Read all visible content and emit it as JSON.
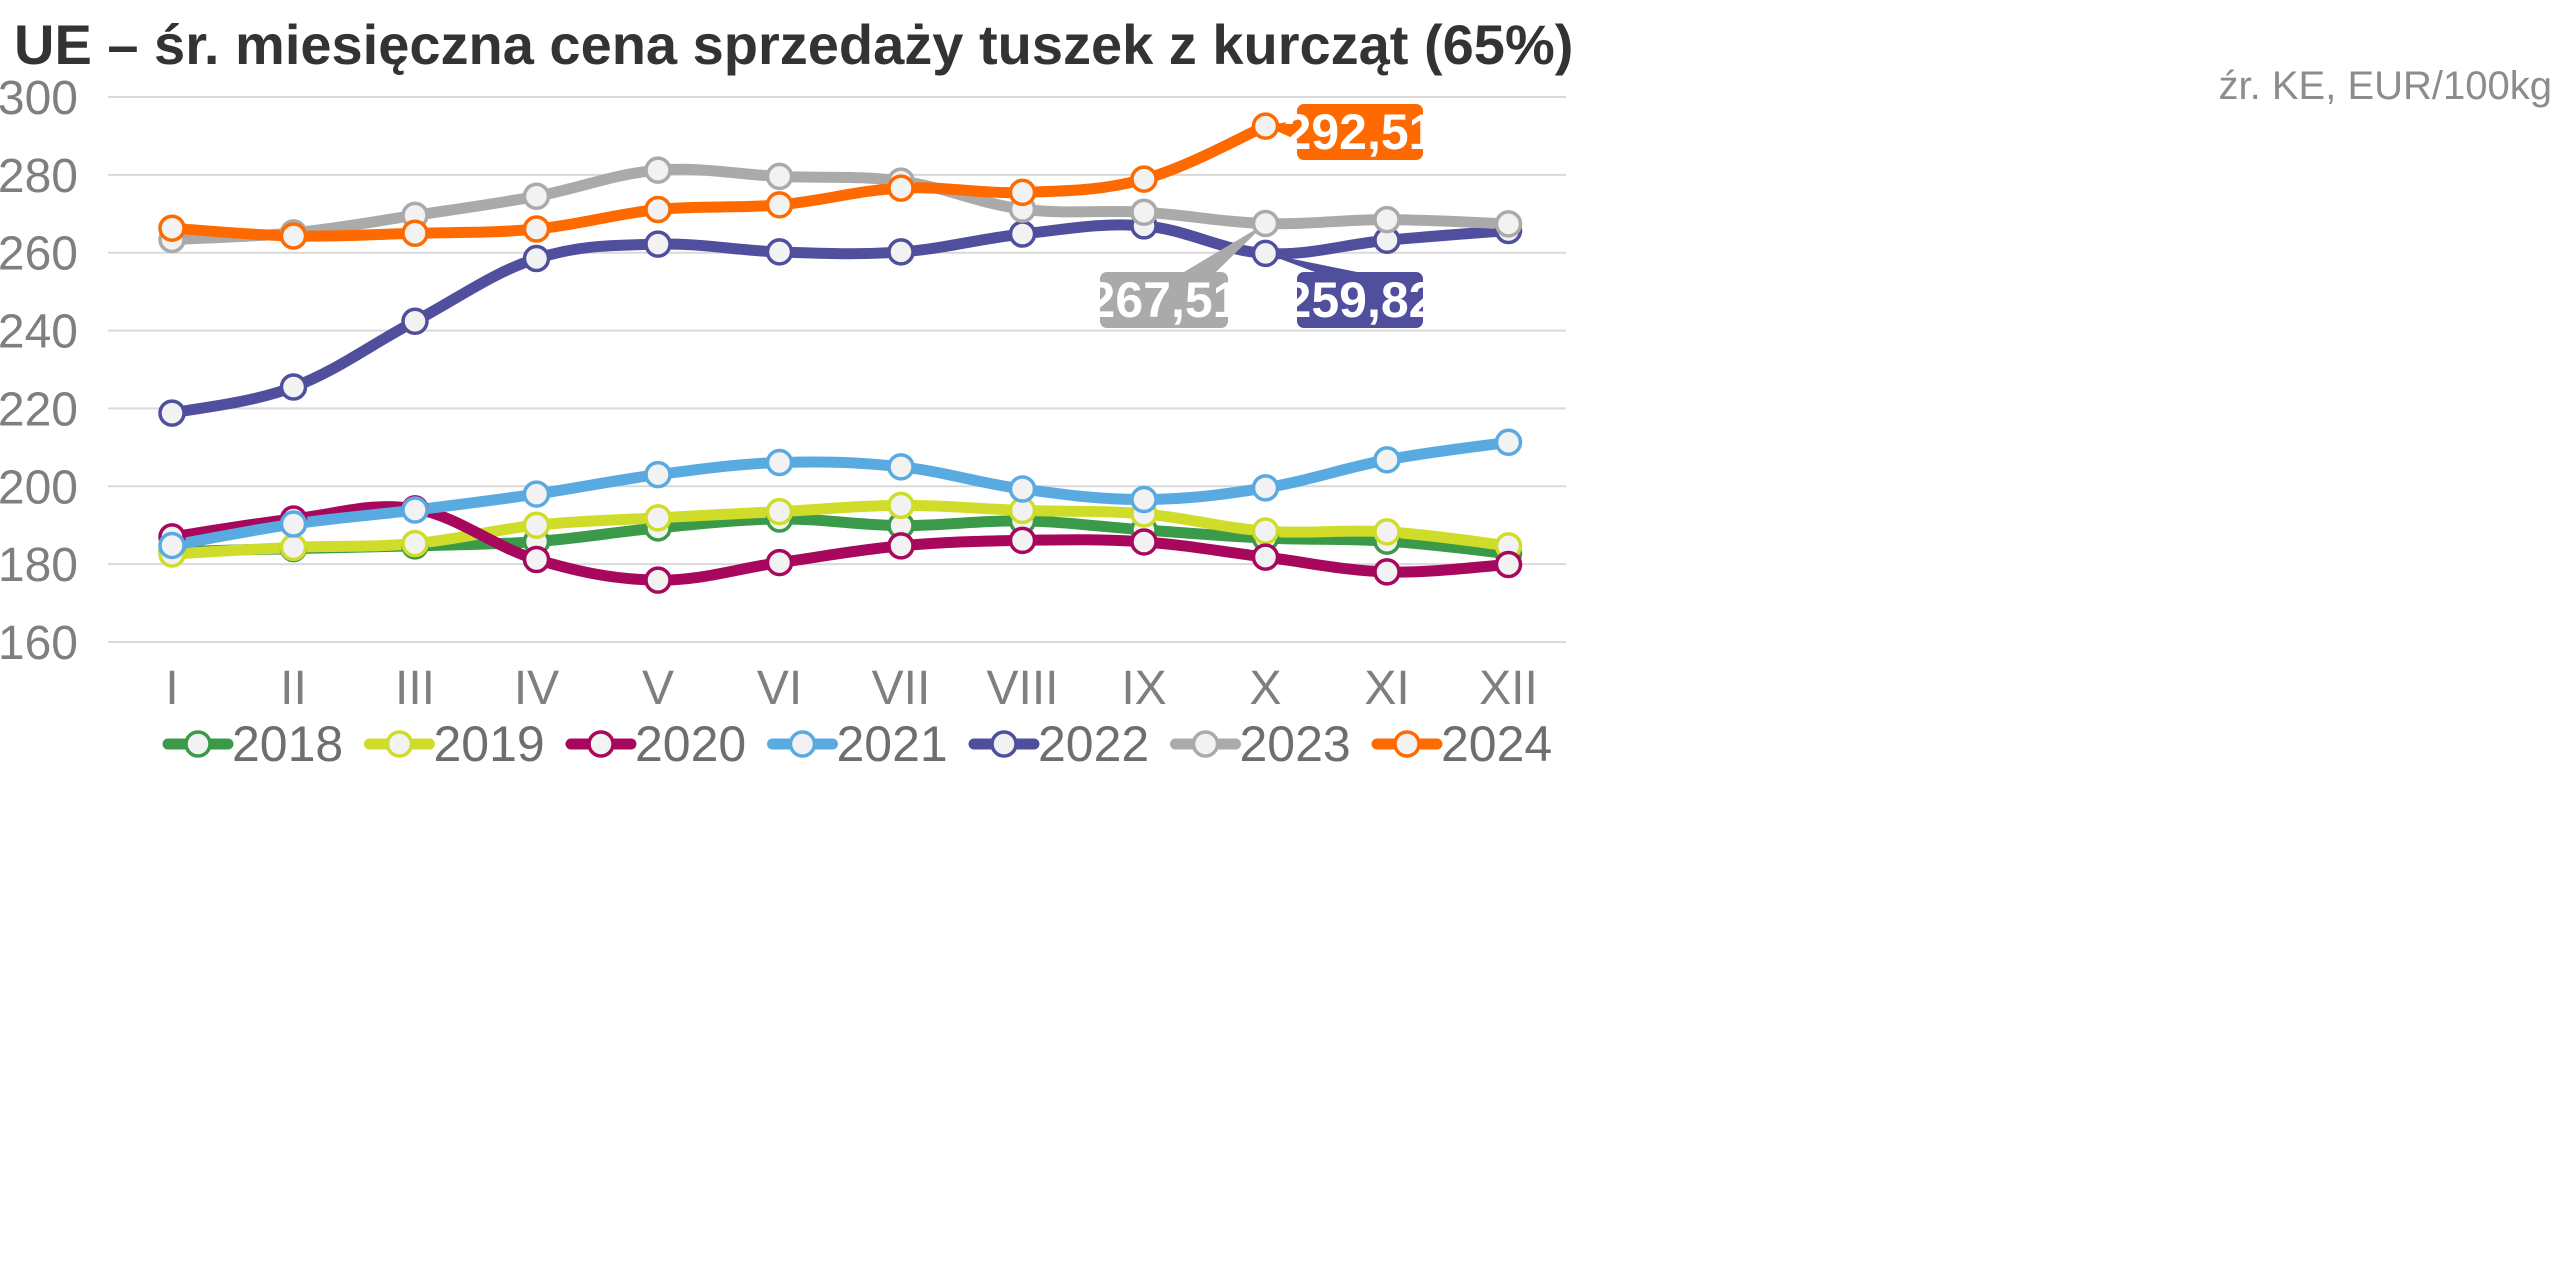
{
  "title": "UE – śr. miesięczna cena sprzedaży tuszek z kurcząt (65%)",
  "source": "źr. KE, EUR/100kg",
  "chart_data": {
    "type": "line",
    "categories": [
      "I",
      "II",
      "III",
      "IV",
      "V",
      "VI",
      "VII",
      "VIII",
      "IX",
      "X",
      "XI",
      "XII"
    ],
    "ylim": [
      160,
      300
    ],
    "yticks": [
      160,
      180,
      200,
      220,
      240,
      260,
      280,
      300
    ],
    "grid": true,
    "legend_position": "bottom",
    "series": [
      {
        "name": "2018",
        "color": "#3a9a4a",
        "values": [
          183.2,
          184.0,
          184.7,
          185.8,
          189.3,
          191.6,
          189.9,
          191.1,
          188.8,
          186.7,
          185.9,
          182.7
        ]
      },
      {
        "name": "2019",
        "color": "#cfdd2a",
        "values": [
          182.6,
          184.3,
          185.3,
          190.0,
          191.9,
          193.5,
          195.1,
          193.8,
          192.9,
          188.5,
          188.3,
          184.7
        ]
      },
      {
        "name": "2020",
        "color": "#a8075e",
        "values": [
          187.0,
          191.6,
          194.2,
          181.2,
          175.9,
          180.4,
          184.7,
          186.1,
          185.7,
          181.8,
          178.0,
          179.9
        ]
      },
      {
        "name": "2021",
        "color": "#5aaae2",
        "values": [
          184.8,
          190.3,
          193.9,
          198.0,
          203.0,
          206.1,
          205.0,
          199.3,
          196.6,
          199.6,
          206.8,
          211.3
        ]
      },
      {
        "name": "2022",
        "color": "#4f4f9e",
        "values": [
          218.8,
          225.5,
          242.4,
          258.5,
          262.2,
          260.2,
          260.2,
          264.8,
          266.9,
          259.82,
          263.2,
          265.7
        ]
      },
      {
        "name": "2023",
        "color": "#aaaaaa",
        "values": [
          263.4,
          265.1,
          269.6,
          274.5,
          281.2,
          279.6,
          278.4,
          271.2,
          270.4,
          267.51,
          268.5,
          267.4
        ]
      },
      {
        "name": "2024",
        "color": "#ff6a00",
        "values": [
          266.3,
          264.3,
          265.0,
          266.1,
          271.1,
          272.3,
          276.6,
          275.5,
          278.9,
          292.51,
          null,
          null
        ]
      }
    ],
    "annotations": [
      {
        "series": "2024",
        "category": "X",
        "label": "292,51"
      },
      {
        "series": "2023",
        "category": "X",
        "label": "267,51"
      },
      {
        "series": "2022",
        "category": "X",
        "label": "259,82"
      }
    ]
  }
}
